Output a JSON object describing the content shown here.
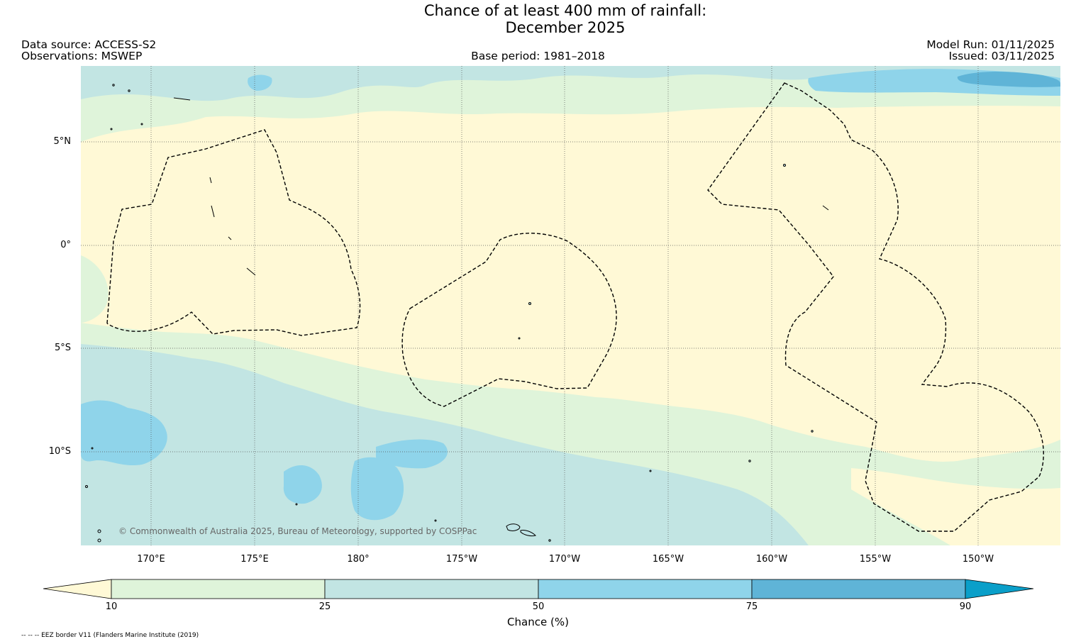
{
  "header": {
    "title_line1": "Chance of at least 400 mm of rainfall:",
    "title_line2": "December 2025",
    "data_source": "Data source: ACCESS-S2",
    "observations": "Observations: MSWEP",
    "base_period": "Base period: 1981–2018",
    "model_run": "Model Run: 01/11/2025",
    "issued": "Issued: 03/11/2025"
  },
  "map": {
    "lat_labels": [
      "5°N",
      "0°",
      "5°S",
      "10°S"
    ],
    "lon_labels": [
      "170°E",
      "175°E",
      "180°",
      "175°W",
      "170°W",
      "165°W",
      "160°W",
      "155°W",
      "150°W"
    ],
    "copyright": "© Commonwealth of Australia 2025, Bureau of Meteorology, supported by COSPPac",
    "colors": {
      "lt10": "#fff9d6",
      "c10_25": "#dff4da",
      "c25_50": "#c2e5e3",
      "c50_75": "#8fd4ea",
      "c75_90": "#5fb4d7",
      "gt90": "#0a9fc9"
    }
  },
  "colorbar": {
    "ticks": [
      "10",
      "25",
      "50",
      "75",
      "90"
    ],
    "label": "Chance (%)"
  },
  "footnote": "-- -- -- EEZ border V11 (Flanders Marine Institute (2019)"
}
